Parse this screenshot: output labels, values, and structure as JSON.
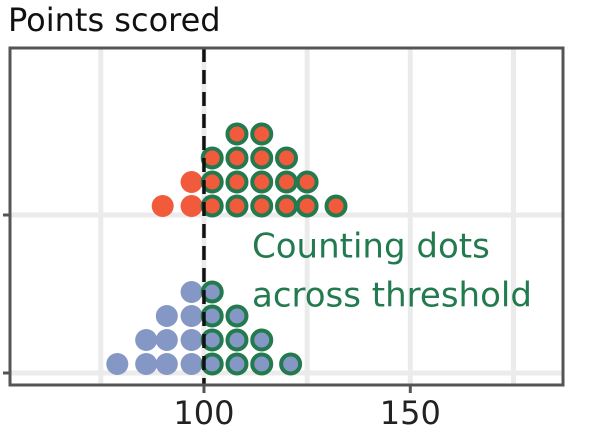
{
  "chart_data": {
    "type": "dotplot",
    "title": "Points scored",
    "categories": [
      null,
      null
    ],
    "series": [
      {
        "color": "#f25a3c",
        "x": [
          90,
          97,
          102,
          108,
          114,
          120,
          125,
          132
        ],
        "counts": [
          1,
          2,
          3,
          4,
          4,
          3,
          2,
          1
        ]
      },
      {
        "color": "#8497c5",
        "x": [
          79,
          86,
          91,
          97,
          102,
          108,
          114,
          121
        ],
        "counts": [
          1,
          2,
          3,
          4,
          4,
          3,
          2,
          1
        ]
      }
    ],
    "threshold": 100,
    "highlight_color": "#237a4f",
    "annotation": [
      "Counting dots",
      "across threshold"
    ],
    "xlim": [
      53,
      187
    ],
    "xticks": [
      100,
      150
    ],
    "xminor": [
      75,
      125,
      175
    ],
    "grid": true
  }
}
